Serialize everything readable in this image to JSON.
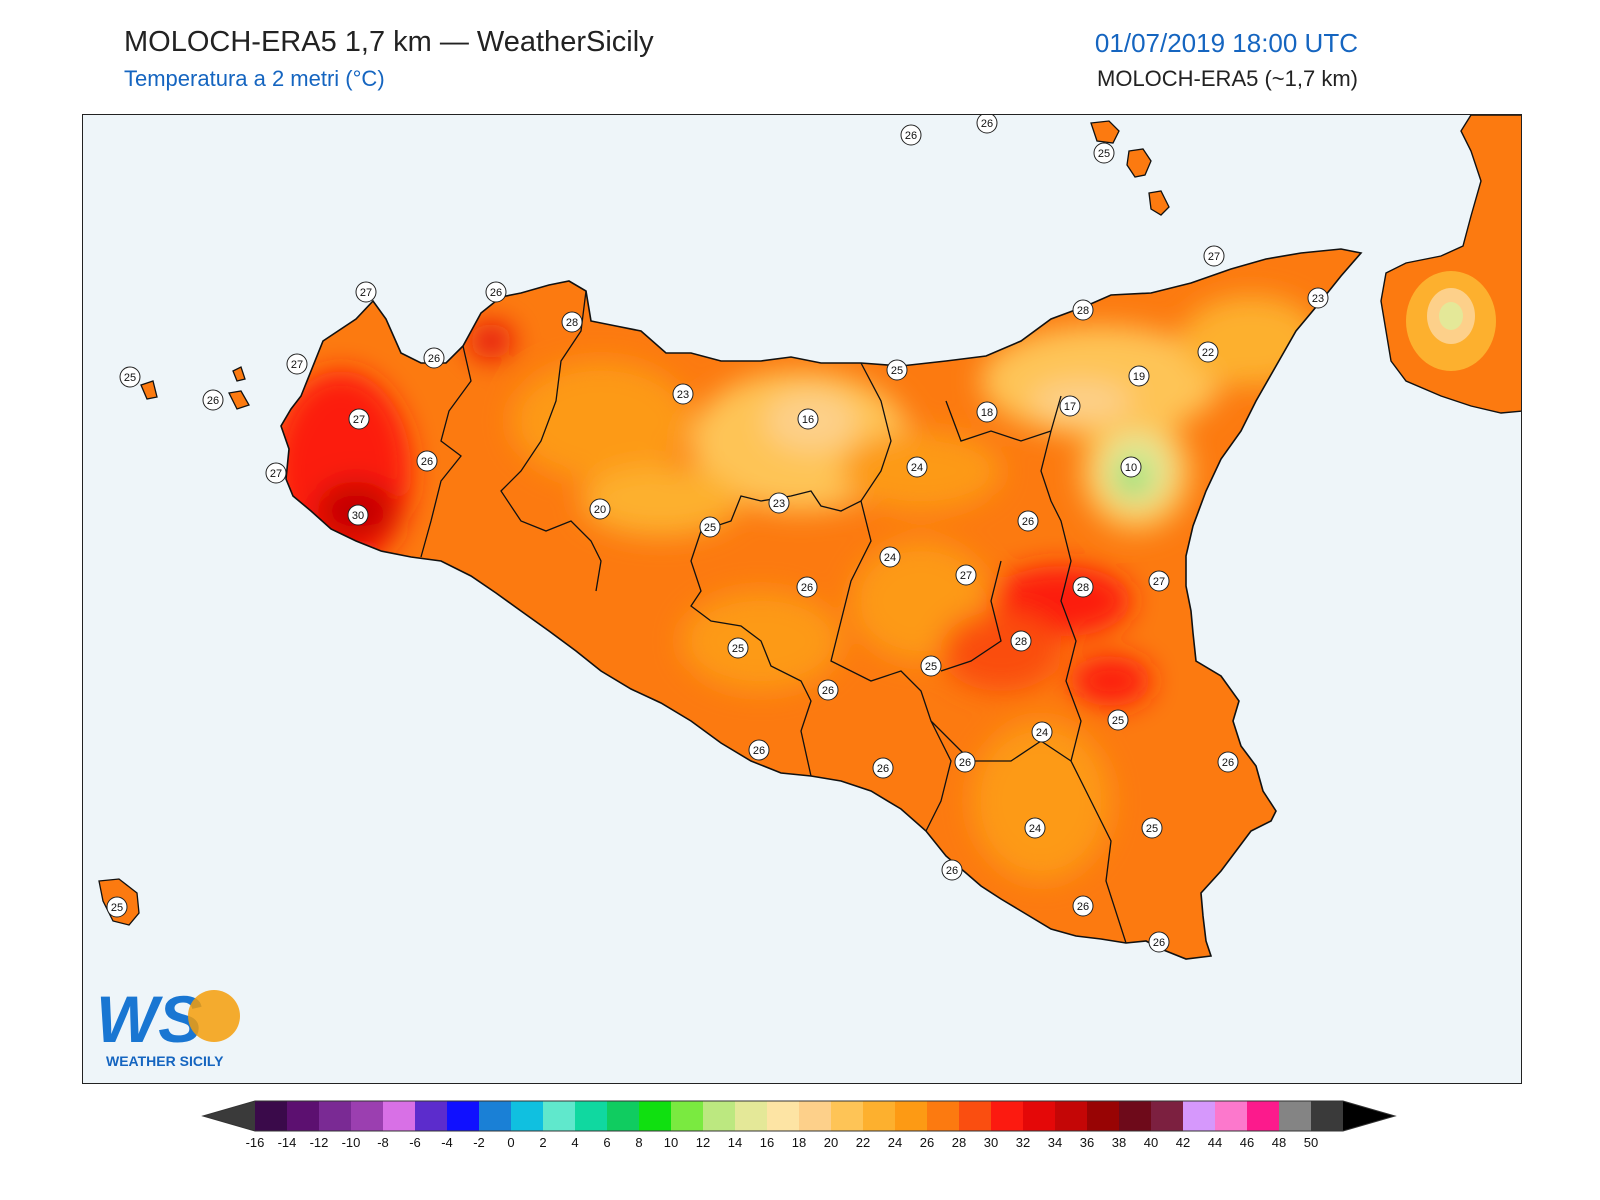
{
  "header": {
    "title": "MOLOCH-ERA5 1,7 km — WeatherSicily",
    "subtitle": "Temperatura a 2 metri (°C)",
    "datetime": "01/07/2019 18:00 UTC",
    "model": "MOLOCH-ERA5 (~1,7 km)"
  },
  "logo": {
    "text": "WS",
    "caption": "WEATHER SICILY",
    "colors": [
      "#1976d2",
      "#f59e0b"
    ]
  },
  "map": {
    "sea_color": "#eef5f9",
    "station_values": [
      "26",
      "26",
      "25",
      "27",
      "26",
      "28",
      "27",
      "26",
      "25",
      "26",
      "27",
      "23",
      "23",
      "16",
      "25",
      "18",
      "19",
      "22",
      "28",
      "17",
      "27",
      "26",
      "10",
      "27",
      "24",
      "30",
      "20",
      "25",
      "23",
      "26",
      "24",
      "27",
      "28",
      "27",
      "28",
      "26",
      "25",
      "25",
      "26",
      "26",
      "25",
      "24",
      "26",
      "26",
      "26",
      "26",
      "24",
      "25",
      "26",
      "26",
      "25"
    ]
  },
  "colorbar": {
    "labels": [
      "-16",
      "-14",
      "-12",
      "-10",
      "-8",
      "-6",
      "-4",
      "-2",
      "0",
      "2",
      "4",
      "6",
      "8",
      "10",
      "12",
      "14",
      "16",
      "18",
      "20",
      "22",
      "24",
      "26",
      "28",
      "30",
      "32",
      "34",
      "36",
      "38",
      "40",
      "42",
      "44",
      "46",
      "48",
      "50"
    ],
    "colors": [
      "#3a0a4a",
      "#5c1070",
      "#7a2a94",
      "#9b3fb0",
      "#d870e6",
      "#5c2ccc",
      "#1010ff",
      "#1a80d6",
      "#10c0e0",
      "#60e8cc",
      "#10d8a0",
      "#10cc60",
      "#10e010",
      "#7aea40",
      "#bce880",
      "#e4e898",
      "#fde4a4",
      "#fdd08a",
      "#fec456",
      "#fdb02e",
      "#fd9a14",
      "#fc7a10",
      "#fa4e10",
      "#fc1a10",
      "#e40808",
      "#c40606",
      "#980404",
      "#6e0a1a",
      "#7c2040",
      "#d698fc",
      "#fc78cc",
      "#fc1a8c",
      "#848484",
      "#3a3a3a"
    ],
    "under_color": "#3a3a3a",
    "over_color": "#000000"
  }
}
